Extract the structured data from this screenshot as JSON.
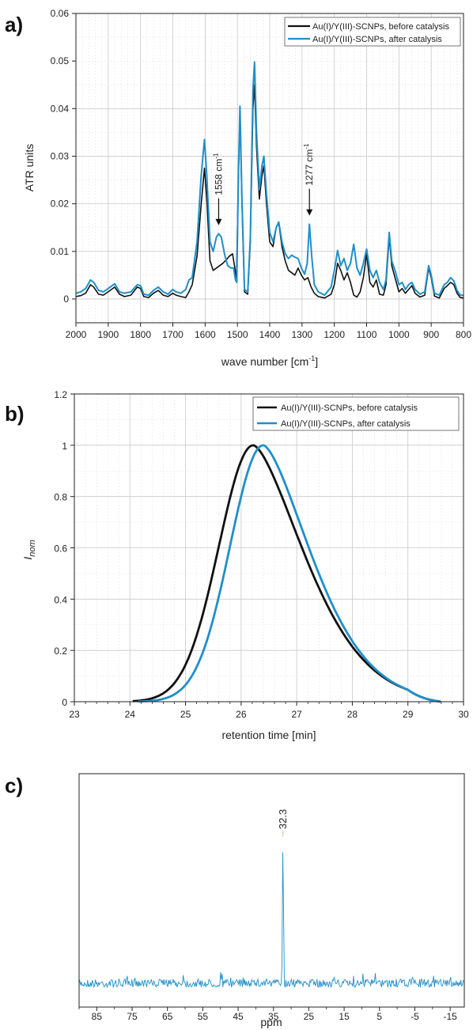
{
  "panels": [
    {
      "letter": "a)"
    },
    {
      "letter": "b)"
    },
    {
      "letter": "c)"
    }
  ],
  "chart_data": [
    {
      "type": "line",
      "xlabel": "wave number [cm",
      "xlabel_sup": "-1",
      "xlabel_suffix": "]",
      "ylabel": "ATR units",
      "xlim": [
        2000,
        800
      ],
      "ylim": [
        -0.005,
        0.06
      ],
      "x_reversed": true,
      "grid": true,
      "legend": "top-right",
      "xticks": [
        "2000",
        "1900",
        "1800",
        "1700",
        "1600",
        "1500",
        "1400",
        "1300",
        "1200",
        "1100",
        "1000",
        "900",
        "800"
      ],
      "yticks": [
        "0",
        "0.01",
        "0.02",
        "0.03",
        "0.04",
        "0.05",
        "0.06"
      ],
      "annotations": [
        {
          "text": "1558 cm",
          "sup": "-1",
          "x": 1558,
          "y": 0.0145
        },
        {
          "text": "1277 cm",
          "sup": "-1",
          "x": 1277,
          "y": 0.0165
        }
      ],
      "series": [
        {
          "name": "Au(I)/Y(III)-SCNPs, before catalysis",
          "color": "#111111",
          "points": [
            [
              2000,
              0.0005
            ],
            [
              1985,
              0.0007
            ],
            [
              1970,
              0.0012
            ],
            [
              1955,
              0.003
            ],
            [
              1945,
              0.0025
            ],
            [
              1930,
              0.001
            ],
            [
              1915,
              0.0008
            ],
            [
              1900,
              0.0015
            ],
            [
              1880,
              0.0025
            ],
            [
              1865,
              0.001
            ],
            [
              1850,
              0.0005
            ],
            [
              1830,
              0.0008
            ],
            [
              1810,
              0.0025
            ],
            [
              1800,
              0.0022
            ],
            [
              1790,
              0.0005
            ],
            [
              1775,
              0.0003
            ],
            [
              1760,
              0.0012
            ],
            [
              1745,
              0.0018
            ],
            [
              1730,
              0.0008
            ],
            [
              1715,
              0.0005
            ],
            [
              1700,
              0.0012
            ],
            [
              1690,
              0.0008
            ],
            [
              1675,
              0.0005
            ],
            [
              1660,
              0.0003
            ],
            [
              1650,
              0.0015
            ],
            [
              1640,
              0.003
            ],
            [
              1625,
              0.009
            ],
            [
              1612,
              0.02
            ],
            [
              1602,
              0.0275
            ],
            [
              1595,
              0.021
            ],
            [
              1585,
              0.008
            ],
            [
              1575,
              0.006
            ],
            [
              1565,
              0.0065
            ],
            [
              1555,
              0.007
            ],
            [
              1545,
              0.0075
            ],
            [
              1535,
              0.0082
            ],
            [
              1525,
              0.009
            ],
            [
              1515,
              0.0095
            ],
            [
              1508,
              0.0065
            ],
            [
              1503,
              0.004
            ],
            [
              1497,
              0.025
            ],
            [
              1492,
              0.0395
            ],
            [
              1486,
              0.02
            ],
            [
              1478,
              0.0015
            ],
            [
              1468,
              0.001
            ],
            [
              1460,
              0.012
            ],
            [
              1452,
              0.04
            ],
            [
              1447,
              0.045
            ],
            [
              1441,
              0.032
            ],
            [
              1432,
              0.021
            ],
            [
              1424,
              0.026
            ],
            [
              1418,
              0.028
            ],
            [
              1410,
              0.02
            ],
            [
              1400,
              0.012
            ],
            [
              1390,
              0.011
            ],
            [
              1380,
              0.015
            ],
            [
              1372,
              0.016
            ],
            [
              1362,
              0.011
            ],
            [
              1352,
              0.008
            ],
            [
              1342,
              0.006
            ],
            [
              1332,
              0.0055
            ],
            [
              1322,
              0.005
            ],
            [
              1312,
              0.0065
            ],
            [
              1302,
              0.005
            ],
            [
              1292,
              0.004
            ],
            [
              1282,
              0.0045
            ],
            [
              1272,
              0.0025
            ],
            [
              1262,
              0.0012
            ],
            [
              1250,
              0.0005
            ],
            [
              1230,
              0.0002
            ],
            [
              1210,
              0.001
            ],
            [
              1200,
              0.003
            ],
            [
              1190,
              0.0075
            ],
            [
              1180,
              0.006
            ],
            [
              1170,
              0.004
            ],
            [
              1160,
              0.0055
            ],
            [
              1150,
              0.0035
            ],
            [
              1140,
              0.0008
            ],
            [
              1130,
              0.0004
            ],
            [
              1120,
              0.0015
            ],
            [
              1110,
              0.0045
            ],
            [
              1100,
              0.0095
            ],
            [
              1090,
              0.0035
            ],
            [
              1080,
              0.0025
            ],
            [
              1070,
              0.004
            ],
            [
              1060,
              0.001
            ],
            [
              1048,
              0.0008
            ],
            [
              1040,
              0.003
            ],
            [
              1030,
              0.013
            ],
            [
              1022,
              0.007
            ],
            [
              1012,
              0.0045
            ],
            [
              1000,
              0.0015
            ],
            [
              990,
              0.0022
            ],
            [
              980,
              0.0012
            ],
            [
              970,
              0.002
            ],
            [
              960,
              0.0028
            ],
            [
              950,
              0.0012
            ],
            [
              935,
              0.0004
            ],
            [
              920,
              0.0008
            ],
            [
              908,
              0.0065
            ],
            [
              900,
              0.0045
            ],
            [
              890,
              0.0006
            ],
            [
              875,
              0.0002
            ],
            [
              860,
              0.0022
            ],
            [
              850,
              0.0028
            ],
            [
              840,
              0.0035
            ],
            [
              830,
              0.003
            ],
            [
              820,
              0.0012
            ],
            [
              810,
              0.0003
            ],
            [
              800,
              0.0002
            ]
          ]
        },
        {
          "name": "Au(I)/Y(III)-SCNPs, after catalysis",
          "color": "#1f8fc9",
          "points": [
            [
              2000,
              0.0012
            ],
            [
              1985,
              0.0015
            ],
            [
              1970,
              0.0022
            ],
            [
              1955,
              0.004
            ],
            [
              1945,
              0.0035
            ],
            [
              1930,
              0.0018
            ],
            [
              1915,
              0.0015
            ],
            [
              1900,
              0.0022
            ],
            [
              1880,
              0.0032
            ],
            [
              1865,
              0.0015
            ],
            [
              1850,
              0.0012
            ],
            [
              1830,
              0.0015
            ],
            [
              1810,
              0.003
            ],
            [
              1800,
              0.0028
            ],
            [
              1790,
              0.001
            ],
            [
              1775,
              0.0008
            ],
            [
              1760,
              0.0018
            ],
            [
              1745,
              0.0025
            ],
            [
              1730,
              0.0015
            ],
            [
              1715,
              0.001
            ],
            [
              1700,
              0.002
            ],
            [
              1690,
              0.0015
            ],
            [
              1675,
              0.0012
            ],
            [
              1660,
              0.002
            ],
            [
              1650,
              0.004
            ],
            [
              1640,
              0.0045
            ],
            [
              1625,
              0.012
            ],
            [
              1612,
              0.026
            ],
            [
              1602,
              0.0335
            ],
            [
              1595,
              0.026
            ],
            [
              1585,
              0.012
            ],
            [
              1575,
              0.01
            ],
            [
              1565,
              0.013
            ],
            [
              1558,
              0.0137
            ],
            [
              1550,
              0.013
            ],
            [
              1540,
              0.0095
            ],
            [
              1530,
              0.007
            ],
            [
              1520,
              0.0065
            ],
            [
              1512,
              0.0065
            ],
            [
              1506,
              0.004
            ],
            [
              1502,
              0.0035
            ],
            [
              1497,
              0.026
            ],
            [
              1492,
              0.0405
            ],
            [
              1486,
              0.021
            ],
            [
              1478,
              0.002
            ],
            [
              1468,
              0.0015
            ],
            [
              1460,
              0.013
            ],
            [
              1452,
              0.044
            ],
            [
              1447,
              0.0498
            ],
            [
              1441,
              0.035
            ],
            [
              1432,
              0.023
            ],
            [
              1424,
              0.028
            ],
            [
              1418,
              0.03
            ],
            [
              1410,
              0.022
            ],
            [
              1400,
              0.014
            ],
            [
              1390,
              0.012
            ],
            [
              1380,
              0.015
            ],
            [
              1372,
              0.0162
            ],
            [
              1362,
              0.012
            ],
            [
              1352,
              0.0095
            ],
            [
              1342,
              0.0085
            ],
            [
              1332,
              0.0092
            ],
            [
              1322,
              0.0088
            ],
            [
              1312,
              0.0085
            ],
            [
              1302,
              0.0065
            ],
            [
              1292,
              0.0052
            ],
            [
              1284,
              0.0075
            ],
            [
              1277,
              0.0157
            ],
            [
              1270,
              0.009
            ],
            [
              1262,
              0.003
            ],
            [
              1250,
              0.0015
            ],
            [
              1230,
              0.0008
            ],
            [
              1210,
              0.0025
            ],
            [
              1200,
              0.006
            ],
            [
              1190,
              0.0102
            ],
            [
              1180,
              0.007
            ],
            [
              1170,
              0.0085
            ],
            [
              1160,
              0.006
            ],
            [
              1150,
              0.0075
            ],
            [
              1140,
              0.0115
            ],
            [
              1130,
              0.0065
            ],
            [
              1120,
              0.005
            ],
            [
              1110,
              0.0075
            ],
            [
              1100,
              0.0105
            ],
            [
              1090,
              0.006
            ],
            [
              1080,
              0.0045
            ],
            [
              1070,
              0.006
            ],
            [
              1060,
              0.0035
            ],
            [
              1048,
              0.002
            ],
            [
              1040,
              0.004
            ],
            [
              1030,
              0.014
            ],
            [
              1022,
              0.008
            ],
            [
              1012,
              0.006
            ],
            [
              1000,
              0.003
            ],
            [
              990,
              0.0035
            ],
            [
              980,
              0.002
            ],
            [
              970,
              0.003
            ],
            [
              960,
              0.0035
            ],
            [
              950,
              0.002
            ],
            [
              935,
              0.001
            ],
            [
              920,
              0.0015
            ],
            [
              908,
              0.007
            ],
            [
              900,
              0.005
            ],
            [
              890,
              0.0012
            ],
            [
              875,
              0.0008
            ],
            [
              860,
              0.003
            ],
            [
              850,
              0.0035
            ],
            [
              840,
              0.0045
            ],
            [
              830,
              0.0038
            ],
            [
              820,
              0.0018
            ],
            [
              810,
              0.0008
            ],
            [
              800,
              0.0008
            ]
          ]
        }
      ]
    },
    {
      "type": "line",
      "xlabel": "retention time [min]",
      "ylabel": "I",
      "ylabel_sub": "nom",
      "xlim": [
        23,
        30
      ],
      "ylim": [
        0,
        1.2
      ],
      "grid": true,
      "legend": "top-right",
      "xticks": [
        "23",
        "24",
        "25",
        "26",
        "27",
        "28",
        "29",
        "30"
      ],
      "yticks": [
        "0",
        "0.2",
        "0.4",
        "0.6",
        "0.8",
        "1",
        "1.2"
      ],
      "series": [
        {
          "name": "Au(I)/Y(III)-SCNPs, before catalysis",
          "color": "#111111",
          "peak": 26.22,
          "sigma_left": 0.62,
          "tau": 1.26,
          "start": 24.05,
          "end": 29.6
        },
        {
          "name": "Au(I)/Y(III)-SCNPs, after catalysis",
          "color": "#1f8fc9",
          "peak": 26.4,
          "sigma_left": 0.6,
          "tau": 1.18,
          "start": 24.15,
          "end": 29.6
        }
      ]
    },
    {
      "type": "line",
      "xlabel": "ppm",
      "xlim": [
        90,
        -19
      ],
      "x_reversed": true,
      "grid": false,
      "xticks": [
        "85",
        "75",
        "65",
        "55",
        "45",
        "35",
        "25",
        "15",
        "5",
        "-5",
        "-15"
      ],
      "annotations": [
        {
          "text": "32.3",
          "x": 32.3
        }
      ],
      "series": [
        {
          "color": "#1f8fc9",
          "peak_ppm": 32.3,
          "noise_level": 0.04,
          "peak_height": 0.62
        }
      ]
    }
  ]
}
